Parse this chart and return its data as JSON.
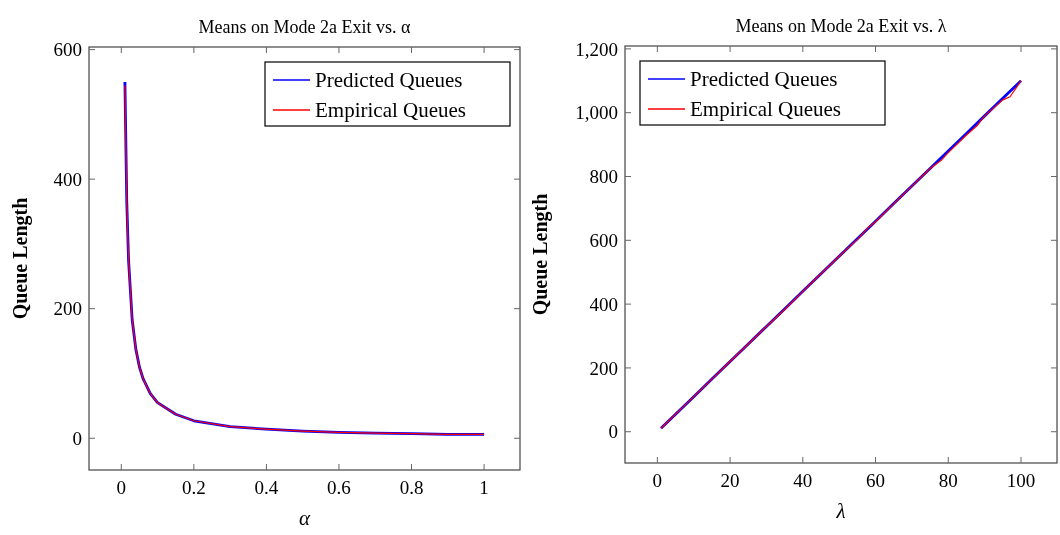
{
  "chart_data": [
    {
      "type": "line",
      "title": "Means on Mode 2a Exit vs. α",
      "xlabel": "α",
      "ylabel": "Queue Length",
      "xlim": [
        -0.089,
        1.099
      ],
      "ylim": [
        -49,
        604
      ],
      "xticks": [
        0,
        0.2,
        0.4,
        0.6,
        0.8,
        1
      ],
      "yticks": [
        0,
        200,
        400,
        600
      ],
      "legend": "top right",
      "grid": false,
      "series": [
        {
          "name": "Predicted Queues",
          "color": "#0000ff",
          "x": [
            0.01,
            0.015,
            0.02,
            0.03,
            0.04,
            0.05,
            0.06,
            0.08,
            0.1,
            0.15,
            0.2,
            0.3,
            0.4,
            0.5,
            0.6,
            0.7,
            0.8,
            0.9,
            1
          ],
          "values": [
            550,
            367,
            275,
            183,
            138,
            110,
            92,
            69,
            55,
            37,
            27,
            18,
            14,
            11,
            9,
            8,
            7,
            6,
            6
          ]
        },
        {
          "name": "Empirical Queues",
          "color": "#ff0000",
          "x": [
            0.01,
            0.015,
            0.02,
            0.03,
            0.04,
            0.05,
            0.06,
            0.08,
            0.1,
            0.15,
            0.2,
            0.3,
            0.4,
            0.5,
            0.6,
            0.7,
            0.8,
            0.9,
            1
          ],
          "values": [
            545,
            367,
            275,
            183,
            138,
            110,
            92,
            69,
            55,
            37,
            27,
            18,
            14,
            11,
            9,
            8,
            7,
            6,
            6
          ]
        }
      ]
    },
    {
      "type": "line",
      "title": "Means on Mode 2a Exit vs. λ",
      "xlabel": "λ",
      "ylabel": "Queue Length",
      "xlim": [
        -8.9,
        109.9
      ],
      "ylim": [
        -98,
        1209
      ],
      "xticks": [
        0,
        20,
        40,
        60,
        80,
        100
      ],
      "yticks": [
        0,
        200,
        400,
        600,
        800,
        {
          "value": 1000,
          "label": "1,000"
        },
        {
          "value": 1200,
          "label": "1,200"
        }
      ],
      "legend": "top left",
      "grid": false,
      "series": [
        {
          "name": "Predicted Queues",
          "color": "#0000ff",
          "x": [
            1,
            5,
            10,
            15,
            20,
            25,
            30,
            35,
            40,
            45,
            50,
            55,
            60,
            65,
            70,
            75,
            80,
            85,
            90,
            95,
            100
          ],
          "values": [
            11,
            55,
            110,
            165,
            220,
            275,
            330,
            385,
            440,
            495,
            550,
            605,
            660,
            715,
            770,
            825,
            880,
            935,
            990,
            1045,
            1100
          ]
        },
        {
          "name": "Empirical Queues",
          "color": "#ff0000",
          "x": [
            1,
            5,
            10,
            15,
            20,
            25,
            30,
            35,
            40,
            45,
            50,
            55,
            58,
            60,
            65,
            70,
            75,
            78,
            80,
            85,
            88,
            90,
            95,
            97,
            100
          ],
          "values": [
            11,
            55,
            110,
            165,
            220,
            275,
            330,
            383,
            440,
            495,
            550,
            603,
            640,
            658,
            715,
            770,
            825,
            850,
            875,
            930,
            960,
            990,
            1040,
            1050,
            1100
          ]
        }
      ]
    }
  ]
}
